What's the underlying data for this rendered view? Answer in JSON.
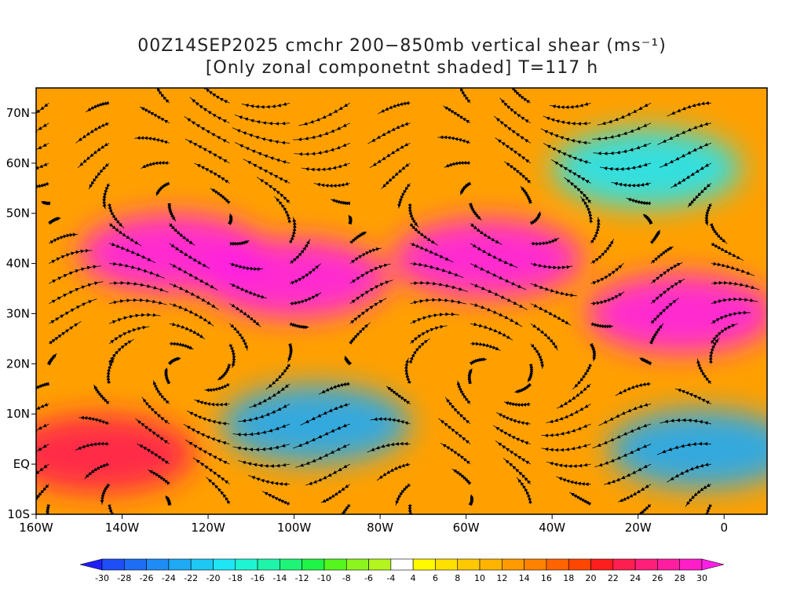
{
  "title": {
    "line1": "00Z14SEP2025 cmchr 200−850mb vertical shear (ms⁻¹)",
    "line2": "[Only zonal componetnt shaded] T=117 h"
  },
  "map": {
    "lon_range": [
      -160,
      10
    ],
    "lat_range": [
      -10,
      75
    ],
    "lon_ticks": [
      {
        "value": -160,
        "label": "160W"
      },
      {
        "value": -140,
        "label": "140W"
      },
      {
        "value": -120,
        "label": "120W"
      },
      {
        "value": -100,
        "label": "100W"
      },
      {
        "value": -80,
        "label": "80W"
      },
      {
        "value": -60,
        "label": "60W"
      },
      {
        "value": -40,
        "label": "40W"
      },
      {
        "value": -20,
        "label": "20W"
      },
      {
        "value": 0,
        "label": "0"
      }
    ],
    "lat_ticks": [
      {
        "value": 70,
        "label": "70N"
      },
      {
        "value": 60,
        "label": "60N"
      },
      {
        "value": 50,
        "label": "50N"
      },
      {
        "value": 40,
        "label": "40N"
      },
      {
        "value": 30,
        "label": "30N"
      },
      {
        "value": 20,
        "label": "20N"
      },
      {
        "value": 10,
        "label": "10N"
      },
      {
        "value": 0,
        "label": "EQ"
      },
      {
        "value": -10,
        "label": "10S"
      }
    ],
    "features": [
      {
        "name": "jet-north-pacific",
        "lon": -128,
        "lat": 42,
        "value": 30
      },
      {
        "name": "jet-north-america",
        "lon": -100,
        "lat": 37,
        "value": 30
      },
      {
        "name": "jet-north-atlantic",
        "lon": -55,
        "lat": 41,
        "value": 30
      },
      {
        "name": "jet-east-atlantic",
        "lon": -10,
        "lat": 30,
        "value": 30
      },
      {
        "name": "easterly-east-pacific",
        "lon": -95,
        "lat": 8,
        "value": -24
      },
      {
        "name": "easterly-east-atlantic",
        "lon": -5,
        "lat": 3,
        "value": -24
      },
      {
        "name": "easterly-greenland",
        "lon": -18,
        "lat": 59,
        "value": -20
      },
      {
        "name": "westerly-south-pacific",
        "lon": -145,
        "lat": 2,
        "value": 22
      }
    ]
  },
  "colorbar": {
    "levels": [
      "-30",
      "-28",
      "-26",
      "-24",
      "-22",
      "-20",
      "-18",
      "-16",
      "-14",
      "-12",
      "-10",
      "-8",
      "-6",
      "-4",
      "4",
      "6",
      "8",
      "10",
      "12",
      "14",
      "16",
      "18",
      "20",
      "22",
      "24",
      "26",
      "28",
      "30"
    ],
    "colors": [
      "#1e1ef5",
      "#1e4ef5",
      "#1e6ef5",
      "#1e8cf5",
      "#1eaaf5",
      "#1ec8f5",
      "#1ee6f5",
      "#1ef5d2",
      "#1ef5aa",
      "#1ef578",
      "#1ef546",
      "#55f51e",
      "#8cf51e",
      "#b4f51e",
      "#ffffff",
      "#fffa00",
      "#ffe100",
      "#ffc800",
      "#ffb400",
      "#ff9b00",
      "#ff8200",
      "#ff6400",
      "#ff4600",
      "#ff1e1e",
      "#ff1e50",
      "#ff1e7a",
      "#ff1ea0",
      "#ff1ec8",
      "#ff1ee6"
    ]
  }
}
